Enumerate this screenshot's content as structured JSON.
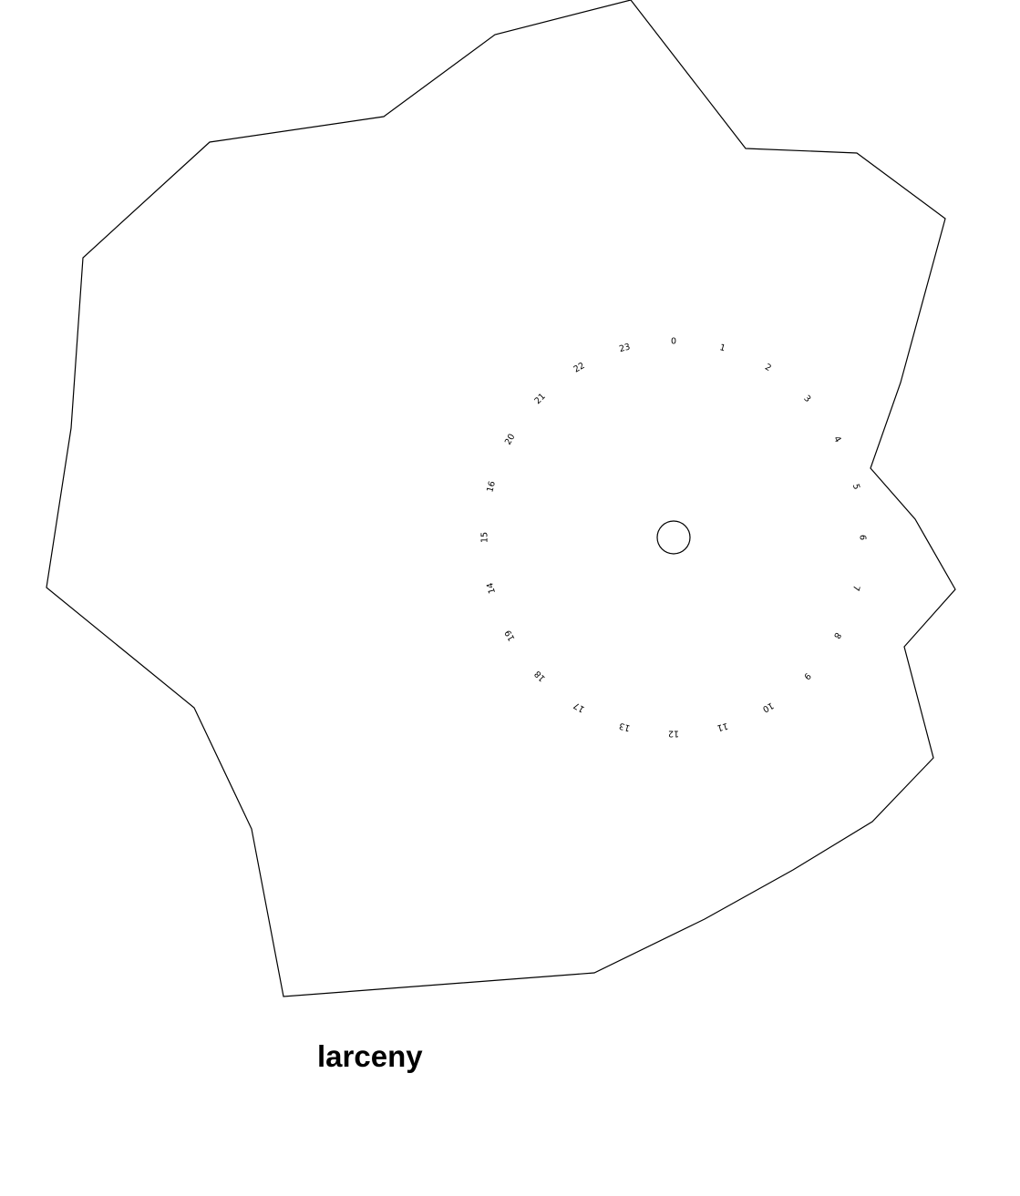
{
  "chart_data": {
    "type": "radial",
    "title": "larceny",
    "hour_labels": [
      "0",
      "1",
      "2",
      "3",
      "4",
      "5",
      "6",
      "7",
      "8",
      "9",
      "10",
      "11",
      "12",
      "13",
      "17",
      "18",
      "19",
      "14",
      "15",
      "16",
      "20",
      "21",
      "22",
      "23"
    ],
    "outline_color": "#000000",
    "label_color": "#000000",
    "background": "#ffffff"
  }
}
